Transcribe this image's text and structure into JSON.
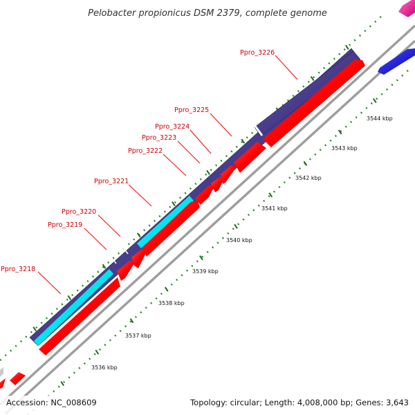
{
  "title": "Pelobacter propionicus DSM 2379, complete genome",
  "footer": {
    "accession": "Accession: NC_008609",
    "summary": "Topology: circular; Length: 4,008,000 bp; Genes: 3,643"
  },
  "gene_labels": [
    "Ppro_3218",
    "Ppro_3219",
    "Ppro_3220",
    "Ppro_3221",
    "Ppro_3222",
    "Ppro_3223",
    "Ppro_3224",
    "Ppro_3225",
    "Ppro_3226"
  ],
  "tick_labels": [
    "3536 kbp",
    "3537 kbp",
    "3538 kbp",
    "3539 kbp",
    "3540 kbp",
    "3541 kbp",
    "3542 kbp",
    "3543 kbp",
    "3544 kbp"
  ],
  "colors": {
    "cds_forward": "#ff0000",
    "gene_track": "#483d8b",
    "highlight_gene": "#00e5ee",
    "backbone": "#9e9e9e",
    "tick_dots": "#228b22",
    "other_blue": "#0000ff",
    "other_pink": "#ff1493",
    "label_red": "#cc0000"
  }
}
